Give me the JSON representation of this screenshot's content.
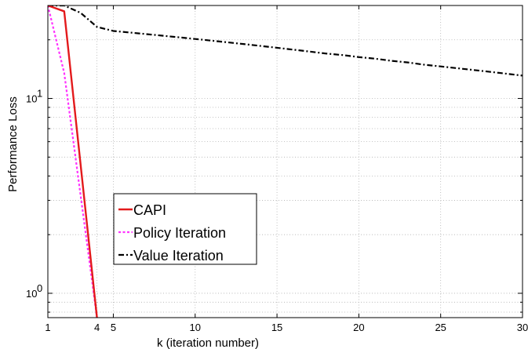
{
  "chart_data": {
    "type": "line",
    "title": "",
    "xlabel": "k (iteration number)",
    "ylabel": "Performance Loss",
    "xlim": [
      1,
      30
    ],
    "ylim": [
      0.75,
      30
    ],
    "yscale": "log",
    "grid": true,
    "legend_position": "lower-left",
    "x_ticks": [
      1,
      4,
      5,
      10,
      15,
      20,
      25,
      30
    ],
    "x_tick_labels": [
      "1",
      "4",
      "5",
      "10",
      "15",
      "20",
      "25",
      "30"
    ],
    "y_major_ticks": [
      {
        "value": 1,
        "base": "10",
        "exponent": "0"
      },
      {
        "value": 10,
        "base": "10",
        "exponent": "1"
      }
    ],
    "y_minor_ticks": [
      0.8,
      0.9,
      2,
      3,
      4,
      5,
      6,
      7,
      8,
      9,
      20,
      30
    ],
    "series": [
      {
        "name": "CAPI",
        "color": "#e31a1c",
        "style": "solid",
        "x": [
          1,
          2,
          4
        ],
        "y": [
          30,
          28,
          0.75
        ]
      },
      {
        "name": "Policy Iteration",
        "color": "#ff33ff",
        "style": "dotted",
        "x": [
          1,
          2,
          4
        ],
        "y": [
          30,
          13.5,
          0.75
        ]
      },
      {
        "name": "Value Iteration",
        "color": "#000000",
        "style": "dashdot",
        "x": [
          1,
          2,
          3,
          4,
          5,
          6,
          7,
          8,
          9,
          10,
          11,
          12,
          13,
          14,
          15,
          16,
          17,
          18,
          19,
          20,
          21,
          22,
          23,
          24,
          25,
          26,
          27,
          28,
          29,
          30
        ],
        "y": [
          30,
          30,
          27.5,
          23.3,
          22.2,
          21.8,
          21.4,
          21.0,
          20.6,
          20.2,
          19.8,
          19.4,
          19.0,
          18.6,
          18.2,
          17.8,
          17.4,
          17.0,
          16.7,
          16.3,
          16.0,
          15.6,
          15.3,
          14.9,
          14.6,
          14.3,
          14.0,
          13.7,
          13.4,
          13.1
        ]
      }
    ]
  }
}
